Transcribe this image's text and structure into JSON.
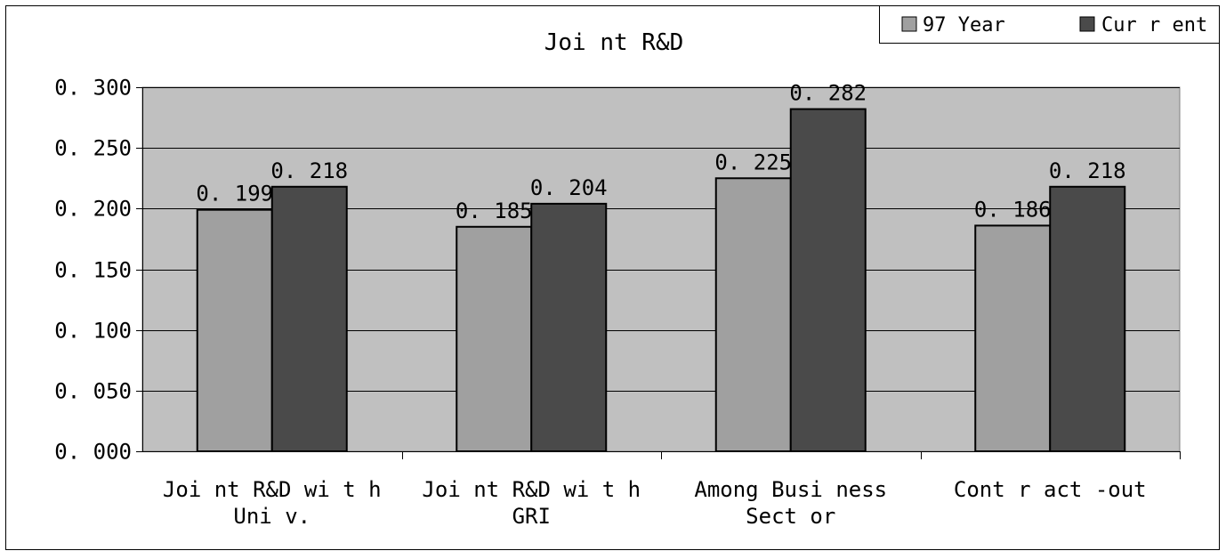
{
  "chart_data": {
    "type": "bar",
    "title": "Joi nt    R&D",
    "categories": [
      [
        "Joi nt  R&D wi t h",
        "Uni v."
      ],
      [
        "Joi nt  R&D wi t h",
        "GRI"
      ],
      [
        "Among Busi ness",
        "Sect or"
      ],
      [
        "Cont r act -out"
      ]
    ],
    "series": [
      {
        "name": "97 Year",
        "values": [
          0.199,
          0.185,
          0.225,
          0.186
        ],
        "labels": [
          "0. 199",
          "0. 185",
          "0. 225",
          "0. 186"
        ],
        "color": "#a0a0a0"
      },
      {
        "name": "Cur r ent",
        "values": [
          0.218,
          0.204,
          0.282,
          0.218
        ],
        "labels": [
          "0. 218",
          "0. 204",
          "0. 282",
          "0. 218"
        ],
        "color": "#4a4a4a"
      }
    ],
    "ylim": [
      0,
      0.3
    ],
    "yticks": [
      0,
      0.05,
      0.1,
      0.15,
      0.2,
      0.25,
      0.3
    ],
    "ytick_labels": [
      "0. 000",
      "0. 050",
      "0. 100",
      "0. 150",
      "0. 200",
      "0. 250",
      "0. 300"
    ],
    "xlabel": "",
    "ylabel": "",
    "grid": true,
    "legend": "top-right",
    "plot_background": "#c0c0c0"
  }
}
